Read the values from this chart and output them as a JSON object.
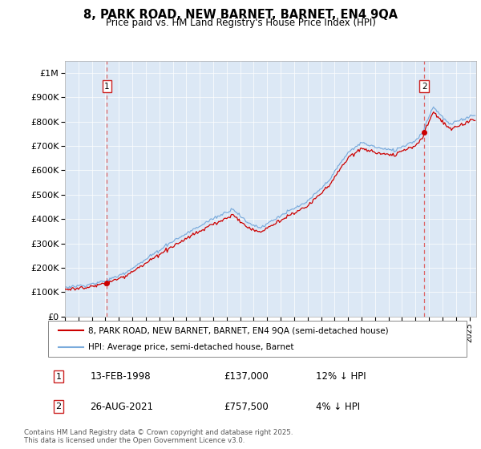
{
  "title": "8, PARK ROAD, NEW BARNET, BARNET, EN4 9QA",
  "subtitle": "Price paid vs. HM Land Registry's House Price Index (HPI)",
  "legend_entry1": "8, PARK ROAD, NEW BARNET, BARNET, EN4 9QA (semi-detached house)",
  "legend_entry2": "HPI: Average price, semi-detached house, Barnet",
  "annotation1_date": "13-FEB-1998",
  "annotation1_price": "£137,000",
  "annotation1_hpi": "12% ↓ HPI",
  "annotation1_year": 1998.12,
  "annotation1_value": 137000,
  "annotation2_date": "26-AUG-2021",
  "annotation2_price": "£757,500",
  "annotation2_hpi": "4% ↓ HPI",
  "annotation2_year": 2021.65,
  "annotation2_value": 757500,
  "sale_color": "#cc0000",
  "hpi_color": "#7aabdc",
  "dashed_color": "#dd6666",
  "background_color": "#dce8f5",
  "ylim": [
    0,
    1050000
  ],
  "xlim_start": 1995.0,
  "xlim_end": 2025.5,
  "yticks": [
    0,
    100000,
    200000,
    300000,
    400000,
    500000,
    600000,
    700000,
    800000,
    900000,
    1000000
  ],
  "ytick_labels": [
    "£0",
    "£100K",
    "£200K",
    "£300K",
    "£400K",
    "£500K",
    "£600K",
    "£700K",
    "£800K",
    "£900K",
    "£1M"
  ],
  "footer": "Contains HM Land Registry data © Crown copyright and database right 2025.\nThis data is licensed under the Open Government Licence v3.0."
}
